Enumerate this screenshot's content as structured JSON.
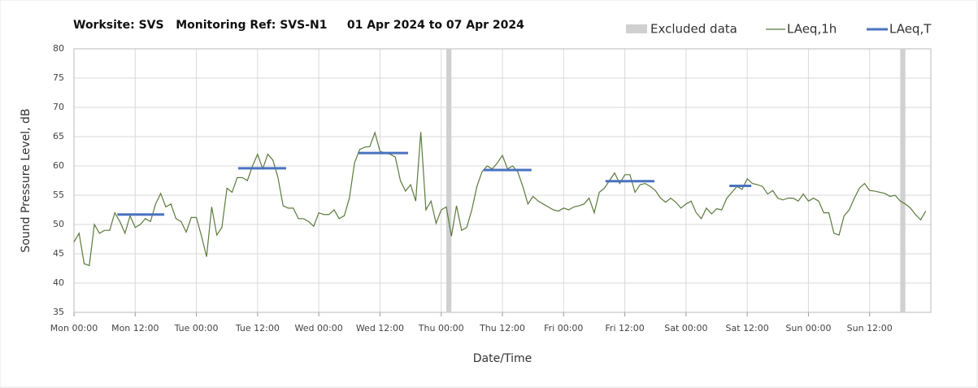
{
  "chart_data": {
    "type": "line",
    "title": "Worksite: SVS   Monitoring Ref: SVS-N1     01 Apr 2024 to 07 Apr 2024",
    "xlabel": "Date/Time",
    "ylabel": "Sound Pressure Level, dB",
    "xlim": [
      0,
      168
    ],
    "ylim": [
      35,
      80
    ],
    "yticks": [
      35,
      40,
      45,
      50,
      55,
      60,
      65,
      70,
      75,
      80
    ],
    "xticks": [
      {
        "value": 0,
        "label": "Mon 00:00"
      },
      {
        "value": 12,
        "label": "Mon 12:00"
      },
      {
        "value": 24,
        "label": "Tue 00:00"
      },
      {
        "value": 36,
        "label": "Tue 12:00"
      },
      {
        "value": 48,
        "label": "Wed 00:00"
      },
      {
        "value": 60,
        "label": "Wed 12:00"
      },
      {
        "value": 72,
        "label": "Thu 00:00"
      },
      {
        "value": 84,
        "label": "Thu 12:00"
      },
      {
        "value": 96,
        "label": "Fri 00:00"
      },
      {
        "value": 108,
        "label": "Fri 12:00"
      },
      {
        "value": 120,
        "label": "Sat 00:00"
      },
      {
        "value": 132,
        "label": "Sat 12:00"
      },
      {
        "value": 144,
        "label": "Sun 00:00"
      },
      {
        "value": 156,
        "label": "Sun 12:00"
      }
    ],
    "grid": true,
    "x": [
      0,
      1,
      2,
      3,
      4,
      5,
      6,
      7,
      8,
      9,
      10,
      11,
      12,
      13,
      14,
      15,
      16,
      17,
      18,
      19,
      20,
      21,
      22,
      23,
      24,
      25,
      26,
      27,
      28,
      29,
      30,
      31,
      32,
      33,
      34,
      35,
      36,
      37,
      38,
      39,
      40,
      41,
      42,
      43,
      44,
      45,
      46,
      47,
      48,
      49,
      50,
      51,
      52,
      53,
      54,
      55,
      56,
      57,
      58,
      59,
      60,
      61,
      62,
      63,
      64,
      65,
      66,
      67,
      68,
      69,
      70,
      71,
      72,
      73,
      74,
      75,
      76,
      77,
      78,
      79,
      80,
      81,
      82,
      83,
      84,
      85,
      86,
      87,
      88,
      89,
      90,
      91,
      92,
      93,
      94,
      95,
      96,
      97,
      98,
      99,
      100,
      101,
      102,
      103,
      104,
      105,
      106,
      107,
      108,
      109,
      110,
      111,
      112,
      113,
      114,
      115,
      116,
      117,
      118,
      119,
      120,
      121,
      122,
      123,
      124,
      125,
      126,
      127,
      128,
      129,
      130,
      131,
      132,
      133,
      134,
      135,
      136,
      137,
      138,
      139,
      140,
      141,
      142,
      143,
      144,
      145,
      146,
      147,
      148,
      149,
      150,
      151,
      152,
      153,
      154,
      155,
      156,
      157,
      158,
      159,
      160,
      161,
      162,
      163,
      164,
      165,
      166,
      167
    ],
    "series": [
      {
        "name": "LAeq,1h",
        "color": "#5b7a3c",
        "values": [
          47,
          48.5,
          43.3,
          43,
          50,
          48.5,
          49,
          49,
          52,
          50.5,
          48.5,
          51.5,
          49.5,
          50,
          51,
          50.5,
          53.5,
          55.3,
          53,
          53.5,
          51,
          50.5,
          48.7,
          51.2,
          51.2,
          48,
          44.5,
          53,
          48.2,
          49.5,
          56.2,
          55.5,
          58,
          58,
          57.5,
          60,
          62,
          59.5,
          62,
          61,
          58,
          53.2,
          52.8,
          52.8,
          51,
          51,
          50.5,
          49.7,
          52,
          51.7,
          51.7,
          52.5,
          51,
          51.5,
          54.5,
          60.5,
          62.8,
          63.2,
          63.3,
          65.7,
          62.5,
          62.2,
          62,
          61.5,
          57.5,
          55.7,
          56.8,
          54,
          65.8,
          52.5,
          54,
          50.2,
          52.5,
          53,
          48,
          53.2,
          49,
          49.5,
          52.5,
          56.5,
          59,
          60,
          59.5,
          60.5,
          61.8,
          59.5,
          60,
          59,
          56.5,
          53.5,
          54.8,
          54,
          53.5,
          53,
          52.5,
          52.3,
          52.8,
          52.5,
          53,
          53.2,
          53.5,
          54.5,
          52,
          55.5,
          56.2,
          57.5,
          58.8,
          57,
          58.5,
          58.5,
          55.5,
          56.8,
          57,
          56.5,
          55.8,
          54.5,
          53.8,
          54.5,
          53.8,
          52.8,
          53.5,
          54,
          52,
          51,
          52.8,
          51.8,
          52.7,
          52.5,
          54.5,
          55.5,
          56.5,
          56,
          57.8,
          57,
          56.8,
          56.5,
          55.2,
          55.8,
          54.5,
          54.2,
          54.5,
          54.5,
          54,
          55.2,
          54,
          54.5,
          54,
          52,
          52,
          48.5,
          48.2,
          51.5,
          52.5,
          54.5,
          56.2,
          57,
          55.8,
          55.7,
          55.5,
          55.3,
          54.8,
          55,
          54,
          53.5,
          52.8,
          51.7,
          50.8,
          52.3
        ]
      }
    ],
    "periods": {
      "name": "LAeq,T",
      "color": "#4a72c0",
      "segments": [
        {
          "start": 8.5,
          "end": 17.7,
          "value": 51.7
        },
        {
          "start": 32.2,
          "end": 41.6,
          "value": 59.6
        },
        {
          "start": 55.8,
          "end": 65.5,
          "value": 62.2
        },
        {
          "start": 80.3,
          "end": 89.7,
          "value": 59.3
        },
        {
          "start": 104.2,
          "end": 113.8,
          "value": 57.4
        },
        {
          "start": 128.5,
          "end": 132.8,
          "value": 56.6
        }
      ]
    },
    "excluded": {
      "name": "Excluded data",
      "color": "#d0d0d0",
      "ranges": [
        {
          "start": 73,
          "end": 74
        },
        {
          "start": 162,
          "end": 163
        }
      ]
    }
  }
}
